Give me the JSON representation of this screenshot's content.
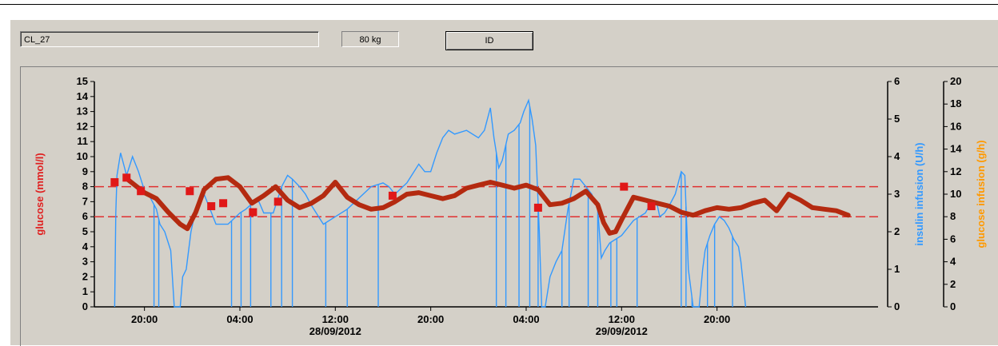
{
  "patient": {
    "id_value": "CL_27",
    "weight_value": "80 kg",
    "id_button_label": "ID"
  },
  "chart_data": {
    "type": "line",
    "left_axis": {
      "label": "glucose (mmol/l)",
      "range": [
        0,
        15
      ],
      "ticks": [
        "0",
        "1",
        "2",
        "3",
        "4",
        "5",
        "6",
        "7",
        "8",
        "9",
        "10",
        "11",
        "12",
        "13",
        "14",
        "15"
      ],
      "color": "#e02020"
    },
    "right_axis_1": {
      "label": "insulin infusion (U/h)",
      "range": [
        0,
        6
      ],
      "ticks": [
        "0",
        "1",
        "2",
        "3",
        "4",
        "5",
        "6"
      ],
      "color": "#3399ff"
    },
    "right_axis_2": {
      "label": "glucose infusion (g/h)",
      "range": [
        0,
        20
      ],
      "ticks": [
        "0",
        "2",
        "4",
        "6",
        "8",
        "10",
        "12",
        "14",
        "16",
        "18",
        "20"
      ],
      "color": "#ff9900"
    },
    "x_ticks": [
      {
        "time": "20:00",
        "date": ""
      },
      {
        "time": "04:00",
        "date": ""
      },
      {
        "time": "12:00",
        "date": "28/09/2012"
      },
      {
        "time": "20:00",
        "date": ""
      },
      {
        "time": "04:00",
        "date": ""
      },
      {
        "time": "12:00",
        "date": "29/09/2012"
      },
      {
        "time": "20:00",
        "date": ""
      }
    ],
    "target_range_glucose": [
      6,
      8
    ],
    "glucose_measurements": [
      [
        -2.5,
        8.3
      ],
      [
        -1.5,
        8.6
      ],
      [
        -0.3,
        7.7
      ],
      [
        3.8,
        7.7
      ],
      [
        5.6,
        6.7
      ],
      [
        6.6,
        6.9
      ],
      [
        9.1,
        6.3
      ],
      [
        11.2,
        7.0
      ],
      [
        20.8,
        7.4
      ],
      [
        33.0,
        6.6
      ],
      [
        40.2,
        8.0
      ],
      [
        42.5,
        6.7
      ]
    ],
    "glucose_trend": [
      [
        -1.6,
        8.6
      ],
      [
        -0.8,
        8.1
      ],
      [
        0,
        7.6
      ],
      [
        1,
        7.2
      ],
      [
        2,
        6.3
      ],
      [
        3,
        5.5
      ],
      [
        3.6,
        5.2
      ],
      [
        4.3,
        6.3
      ],
      [
        5,
        7.8
      ],
      [
        6,
        8.5
      ],
      [
        7,
        8.6
      ],
      [
        8,
        8.0
      ],
      [
        9,
        6.9
      ],
      [
        10,
        7.4
      ],
      [
        11,
        8.0
      ],
      [
        12,
        7.1
      ],
      [
        13,
        6.6
      ],
      [
        14,
        6.9
      ],
      [
        15,
        7.4
      ],
      [
        16,
        8.3
      ],
      [
        17,
        7.3
      ],
      [
        18,
        6.8
      ],
      [
        19,
        6.5
      ],
      [
        20,
        6.6
      ],
      [
        21,
        7.0
      ],
      [
        22,
        7.5
      ],
      [
        23,
        7.6
      ],
      [
        24,
        7.4
      ],
      [
        25,
        7.2
      ],
      [
        26,
        7.4
      ],
      [
        27,
        7.9
      ],
      [
        28,
        8.1
      ],
      [
        29,
        8.3
      ],
      [
        30,
        8.1
      ],
      [
        31,
        7.9
      ],
      [
        32,
        8.1
      ],
      [
        33,
        7.8
      ],
      [
        34,
        6.8
      ],
      [
        35,
        6.9
      ],
      [
        36,
        7.2
      ],
      [
        37,
        7.7
      ],
      [
        38,
        6.8
      ],
      [
        38.5,
        5.6
      ],
      [
        39,
        4.9
      ],
      [
        39.5,
        5.0
      ],
      [
        40,
        5.8
      ],
      [
        41,
        7.3
      ],
      [
        42,
        7.1
      ],
      [
        43,
        6.9
      ],
      [
        44,
        6.7
      ],
      [
        45,
        6.3
      ],
      [
        46,
        6.1
      ],
      [
        47,
        6.4
      ],
      [
        48,
        6.6
      ],
      [
        49,
        6.5
      ],
      [
        50,
        6.6
      ],
      [
        51,
        6.9
      ],
      [
        52,
        7.1
      ],
      [
        53,
        6.4
      ],
      [
        54,
        7.5
      ],
      [
        55,
        7.1
      ],
      [
        56,
        6.6
      ],
      [
        57,
        6.5
      ],
      [
        58,
        6.4
      ],
      [
        59,
        6.1
      ]
    ],
    "insulin_series": [
      [
        -2.5,
        0
      ],
      [
        -2.4,
        2.5
      ],
      [
        -2.3,
        3.5
      ],
      [
        -2,
        4.1
      ],
      [
        -1.5,
        3.5
      ],
      [
        -1,
        4.0
      ],
      [
        -0.5,
        3.6
      ],
      [
        0,
        3.1
      ],
      [
        0.5,
        2.9
      ],
      [
        1,
        2.6
      ],
      [
        1.3,
        2.2
      ],
      [
        1.7,
        2.0
      ],
      [
        2.2,
        1.5
      ],
      [
        2.5,
        0
      ],
      [
        3.0,
        0
      ],
      [
        3.2,
        0.8
      ],
      [
        3.5,
        1.0
      ],
      [
        3.9,
        2.0
      ],
      [
        4.3,
        2.6
      ],
      [
        5,
        3.0
      ],
      [
        5.5,
        2.6
      ],
      [
        6,
        2.2
      ],
      [
        7,
        2.2
      ],
      [
        8,
        2.5
      ],
      [
        8.5,
        2.6
      ],
      [
        9.2,
        2.8
      ],
      [
        9.6,
        2.8
      ],
      [
        10,
        2.5
      ],
      [
        10.8,
        2.5
      ],
      [
        11.5,
        3.2
      ],
      [
        12,
        3.5
      ],
      [
        12.4,
        3.4
      ],
      [
        13,
        3.2
      ],
      [
        13.5,
        3.0
      ],
      [
        14,
        2.7
      ],
      [
        15,
        2.2
      ],
      [
        16,
        2.4
      ],
      [
        17,
        2.6
      ],
      [
        18,
        2.9
      ],
      [
        19,
        3.2
      ],
      [
        20,
        3.3
      ],
      [
        20.5,
        3.2
      ],
      [
        21,
        3.0
      ],
      [
        22,
        3.3
      ],
      [
        23,
        3.8
      ],
      [
        23.5,
        3.6
      ],
      [
        24,
        3.6
      ],
      [
        24.5,
        4.1
      ],
      [
        25,
        4.5
      ],
      [
        25.5,
        4.7
      ],
      [
        26,
        4.6
      ],
      [
        27,
        4.7
      ],
      [
        28,
        4.5
      ],
      [
        28.5,
        4.7
      ],
      [
        29,
        5.3
      ],
      [
        29.3,
        4.5
      ],
      [
        29.7,
        3.7
      ],
      [
        30,
        3.9
      ],
      [
        30.5,
        4.6
      ],
      [
        31,
        4.7
      ],
      [
        31.5,
        4.9
      ],
      [
        31.8,
        5.2
      ],
      [
        32.2,
        5.5
      ],
      [
        32.5,
        5.0
      ],
      [
        32.8,
        4.3
      ],
      [
        33.1,
        2.0
      ],
      [
        33.3,
        0
      ],
      [
        33.6,
        0
      ],
      [
        34,
        0.8
      ],
      [
        34.5,
        1.2
      ],
      [
        35,
        1.5
      ],
      [
        35.5,
        2.6
      ],
      [
        36,
        3.4
      ],
      [
        36.5,
        3.4
      ],
      [
        37,
        3.2
      ],
      [
        37.5,
        3.0
      ],
      [
        38,
        2.6
      ],
      [
        38.3,
        1.3
      ],
      [
        38.6,
        1.5
      ],
      [
        39,
        1.7
      ],
      [
        40,
        1.9
      ],
      [
        41,
        2.3
      ],
      [
        42,
        2.5
      ],
      [
        42.5,
        2.8
      ],
      [
        43,
        2.7
      ],
      [
        43.2,
        2.4
      ],
      [
        43.6,
        2.5
      ],
      [
        44,
        2.7
      ],
      [
        44.5,
        3.0
      ],
      [
        45,
        3.6
      ],
      [
        45.3,
        3.5
      ],
      [
        45.6,
        1.0
      ],
      [
        46,
        0
      ],
      [
        46.5,
        0
      ],
      [
        46.8,
        1.0
      ],
      [
        47,
        1.5
      ],
      [
        47.4,
        1.9
      ],
      [
        47.8,
        2.2
      ],
      [
        48.2,
        2.4
      ],
      [
        48.6,
        2.3
      ],
      [
        49,
        2.1
      ],
      [
        49.4,
        1.8
      ],
      [
        49.8,
        1.6
      ],
      [
        50,
        1.2
      ],
      [
        50.4,
        0
      ]
    ],
    "insulin_dropouts": [
      0.8,
      1.2,
      2.6,
      7.3,
      8.1,
      8.9,
      10.6,
      11.5,
      12.4,
      15.2,
      17.0,
      19.6,
      29.5,
      30.3,
      31.4,
      32.3,
      33.0,
      35.0,
      35.6,
      37.2,
      38.0,
      39.1,
      39.6,
      41.3,
      45.0,
      45.4,
      45.9,
      47.2,
      47.8,
      49.3
    ]
  }
}
